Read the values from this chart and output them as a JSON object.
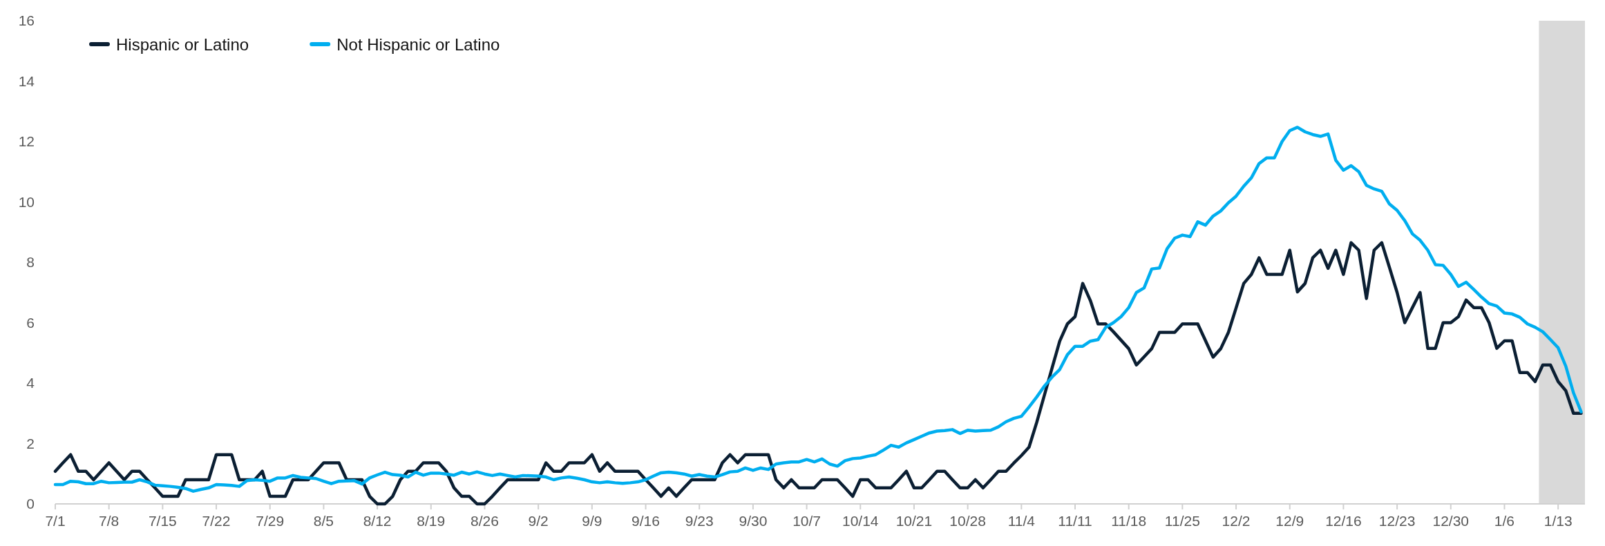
{
  "chart_data": {
    "type": "line",
    "legend": "top left",
    "line_style": "solid",
    "marker": "none",
    "grid": false,
    "ylim": [
      0,
      16
    ],
    "yticks": [
      0,
      2,
      4,
      6,
      8,
      10,
      12,
      14,
      16
    ],
    "categories": [
      "7/1",
      null,
      null,
      null,
      null,
      null,
      null,
      "7/8",
      null,
      null,
      null,
      null,
      null,
      null,
      "7/15",
      null,
      null,
      null,
      null,
      null,
      null,
      "7/22",
      null,
      null,
      null,
      null,
      null,
      null,
      "7/29",
      null,
      null,
      null,
      null,
      null,
      null,
      "8/5",
      null,
      null,
      null,
      null,
      null,
      null,
      "8/12",
      null,
      null,
      null,
      null,
      null,
      null,
      "8/19",
      null,
      null,
      null,
      null,
      null,
      null,
      "8/26",
      null,
      null,
      null,
      null,
      null,
      null,
      "9/2",
      null,
      null,
      null,
      null,
      null,
      null,
      "9/9",
      null,
      null,
      null,
      null,
      null,
      null,
      "9/16",
      null,
      null,
      null,
      null,
      null,
      null,
      "9/23",
      null,
      null,
      null,
      null,
      null,
      null,
      "9/30",
      null,
      null,
      null,
      null,
      null,
      null,
      "10/7",
      null,
      null,
      null,
      null,
      null,
      null,
      "10/14",
      null,
      null,
      null,
      null,
      null,
      null,
      "10/21",
      null,
      null,
      null,
      null,
      null,
      null,
      "10/28",
      null,
      null,
      null,
      null,
      null,
      null,
      "11/4",
      null,
      null,
      null,
      null,
      null,
      null,
      "11/11",
      null,
      null,
      null,
      null,
      null,
      null,
      "11/18",
      null,
      null,
      null,
      null,
      null,
      null,
      "11/25",
      null,
      null,
      null,
      null,
      null,
      null,
      "12/2",
      null,
      null,
      null,
      null,
      null,
      null,
      "12/9",
      null,
      null,
      null,
      null,
      null,
      null,
      "12/16",
      null,
      null,
      null,
      null,
      null,
      null,
      "12/23",
      null,
      null,
      null,
      null,
      null,
      null,
      "12/30",
      null,
      null,
      null,
      null,
      null,
      null,
      "1/6",
      null,
      null,
      null,
      null,
      null,
      null,
      "1/13",
      null,
      null,
      null
    ],
    "series": [
      {
        "name": "Hispanic or Latino",
        "color": "#0b1f33",
        "values": [
          1.08,
          1.36,
          1.63,
          1.08,
          1.08,
          0.8,
          1.08,
          1.36,
          1.08,
          0.8,
          1.08,
          1.08,
          0.8,
          0.53,
          0.25,
          0.25,
          0.25,
          0.8,
          0.8,
          0.8,
          0.8,
          1.63,
          1.63,
          1.63,
          0.8,
          0.8,
          0.8,
          1.08,
          0.25,
          0.25,
          0.25,
          0.8,
          0.8,
          0.8,
          1.08,
          1.36,
          1.36,
          1.36,
          0.8,
          0.8,
          0.8,
          0.25,
          0,
          0,
          0.25,
          0.8,
          1.08,
          1.08,
          1.36,
          1.36,
          1.36,
          1.08,
          0.53,
          0.25,
          0.25,
          0,
          0,
          0.25,
          0.53,
          0.8,
          0.8,
          0.8,
          0.8,
          0.8,
          1.36,
          1.08,
          1.08,
          1.36,
          1.36,
          1.36,
          1.63,
          1.08,
          1.36,
          1.08,
          1.08,
          1.08,
          1.08,
          0.8,
          0.53,
          0.25,
          0.53,
          0.25,
          0.53,
          0.8,
          0.8,
          0.8,
          0.8,
          1.36,
          1.63,
          1.36,
          1.63,
          1.63,
          1.63,
          1.63,
          0.8,
          0.53,
          0.8,
          0.53,
          0.53,
          0.53,
          0.8,
          0.8,
          0.8,
          0.53,
          0.25,
          0.8,
          0.8,
          0.53,
          0.53,
          0.53,
          0.8,
          1.08,
          0.53,
          0.53,
          0.8,
          1.08,
          1.08,
          0.8,
          0.53,
          0.53,
          0.8,
          0.53,
          0.8,
          1.08,
          1.08,
          1.35,
          1.6,
          1.88,
          2.7,
          3.6,
          4.5,
          5.39,
          5.96,
          6.2,
          7.3,
          6.73,
          5.96,
          5.96,
          5.7,
          5.42,
          5.14,
          4.6,
          4.87,
          5.14,
          5.68,
          5.68,
          5.68,
          5.96,
          5.96,
          5.96,
          5.41,
          4.86,
          5.14,
          5.68,
          6.49,
          7.3,
          7.6,
          8.15,
          7.6,
          7.6,
          7.6,
          8.4,
          7.02,
          7.3,
          8.15,
          8.4,
          7.8,
          8.4,
          7.6,
          8.65,
          8.4,
          6.8,
          8.4,
          8.65,
          7.83,
          7.0,
          6.0,
          6.5,
          7.0,
          5.15,
          5.15,
          6.0,
          6.0,
          6.2,
          6.75,
          6.5,
          6.5,
          6.0,
          5.15,
          5.4,
          5.4,
          4.35,
          4.35,
          4.05,
          4.6,
          4.6,
          4.05,
          3.75,
          3.0,
          3.0
        ]
      },
      {
        "name": "Not Hispanic or Latino",
        "color": "#00aeef",
        "values": [
          0.64,
          0.64,
          0.75,
          0.73,
          0.67,
          0.67,
          0.75,
          0.7,
          0.71,
          0.72,
          0.72,
          0.8,
          0.73,
          0.62,
          0.6,
          0.58,
          0.55,
          0.51,
          0.42,
          0.48,
          0.53,
          0.64,
          0.63,
          0.61,
          0.58,
          0.77,
          0.8,
          0.78,
          0.75,
          0.86,
          0.86,
          0.94,
          0.88,
          0.86,
          0.84,
          0.75,
          0.67,
          0.75,
          0.76,
          0.77,
          0.66,
          0.86,
          0.96,
          1.05,
          0.97,
          0.95,
          0.89,
          1.05,
          0.95,
          1.02,
          1.02,
          0.99,
          0.95,
          1.05,
          0.99,
          1.06,
          0.99,
          0.94,
          0.99,
          0.94,
          0.89,
          0.94,
          0.93,
          0.92,
          0.89,
          0.8,
          0.86,
          0.89,
          0.85,
          0.8,
          0.73,
          0.7,
          0.73,
          0.7,
          0.68,
          0.7,
          0.73,
          0.8,
          0.92,
          1.03,
          1.05,
          1.03,
          0.99,
          0.92,
          0.97,
          0.92,
          0.89,
          0.97,
          1.06,
          1.08,
          1.19,
          1.11,
          1.19,
          1.14,
          1.32,
          1.36,
          1.39,
          1.39,
          1.47,
          1.39,
          1.49,
          1.32,
          1.25,
          1.43,
          1.5,
          1.52,
          1.58,
          1.63,
          1.78,
          1.94,
          1.88,
          2.02,
          2.13,
          2.24,
          2.35,
          2.41,
          2.43,
          2.46,
          2.33,
          2.44,
          2.41,
          2.43,
          2.44,
          2.55,
          2.72,
          2.83,
          2.9,
          3.21,
          3.54,
          3.9,
          4.2,
          4.45,
          4.94,
          5.22,
          5.22,
          5.39,
          5.44,
          5.85,
          6.0,
          6.2,
          6.5,
          7.0,
          7.15,
          7.78,
          7.81,
          8.45,
          8.8,
          8.9,
          8.85,
          9.34,
          9.23,
          9.53,
          9.7,
          9.97,
          10.19,
          10.52,
          10.8,
          11.27,
          11.46,
          11.46,
          12.0,
          12.36,
          12.47,
          12.32,
          12.23,
          12.17,
          12.25,
          11.38,
          11.05,
          11.2,
          11.0,
          10.55,
          10.43,
          10.35,
          9.93,
          9.72,
          9.38,
          8.94,
          8.73,
          8.4,
          7.92,
          7.9,
          7.6,
          7.2,
          7.34,
          7.1,
          6.85,
          6.63,
          6.55,
          6.32,
          6.29,
          6.18,
          5.96,
          5.85,
          5.7,
          5.44,
          5.17,
          4.56,
          3.68,
          3.05
        ]
      }
    ]
  }
}
